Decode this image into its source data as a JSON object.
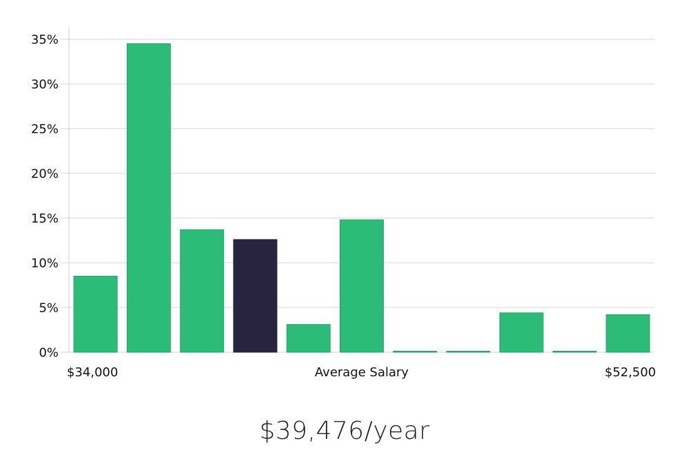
{
  "chart_data": {
    "type": "bar",
    "categories": [
      "1",
      "2",
      "3",
      "4",
      "5",
      "6",
      "7",
      "8",
      "9",
      "10",
      "11"
    ],
    "values": [
      8.5,
      34.5,
      13.7,
      12.6,
      3.1,
      14.8,
      0.1,
      0.1,
      4.4,
      0.1,
      4.2
    ],
    "highlight_index": 3,
    "y_ticks": [
      "0%",
      "5%",
      "10%",
      "15%",
      "20%",
      "25%",
      "30%",
      "35%"
    ],
    "ylim": [
      0,
      35
    ],
    "x_min_label": "$34,000",
    "x_center_label": "Average Salary",
    "x_max_label": "$52,500",
    "grid": true,
    "colors": {
      "bar": "#2bbd77",
      "bar_edge": "#22a866",
      "highlight": "#28243f",
      "grid": "#e3e3e3",
      "axis": "#dddddd"
    }
  },
  "salary_caption": "$39,476/year"
}
